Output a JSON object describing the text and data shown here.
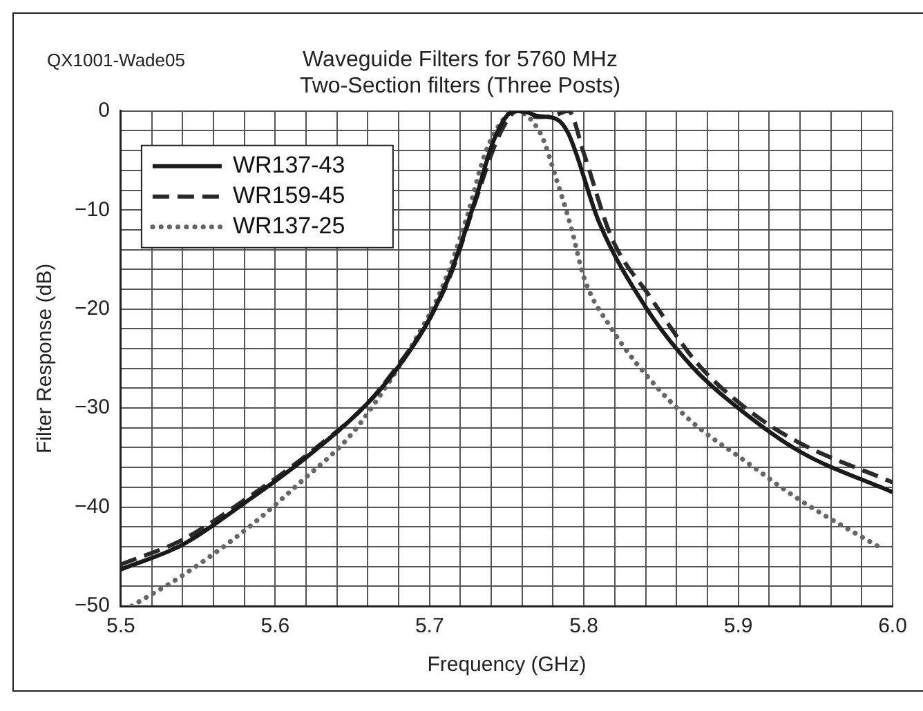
{
  "chart_data": {
    "type": "line",
    "title": [
      "Waveguide Filters for 5760 MHz",
      "Two-Section filters (Three Posts)"
    ],
    "xlabel": "Frequency (GHz)",
    "ylabel": "Filter Response (dB)",
    "annotations": [
      "QX1001-Wade05"
    ],
    "xlim": [
      5.5,
      6.0
    ],
    "xticks": [
      {
        "value": 5.5,
        "label": "5.5"
      },
      {
        "value": 5.52,
        "label": null
      },
      {
        "value": 5.54,
        "label": null
      },
      {
        "value": 5.56,
        "label": null
      },
      {
        "value": 5.58,
        "label": null
      },
      {
        "value": 5.6,
        "label": "5.6"
      },
      {
        "value": 5.62,
        "label": null
      },
      {
        "value": 5.64,
        "label": null
      },
      {
        "value": 5.66,
        "label": null
      },
      {
        "value": 5.68,
        "label": null
      },
      {
        "value": 5.7,
        "label": "5.7"
      },
      {
        "value": 5.72,
        "label": null
      },
      {
        "value": 5.74,
        "label": null
      },
      {
        "value": 5.76,
        "label": null
      },
      {
        "value": 5.78,
        "label": null
      },
      {
        "value": 5.8,
        "label": "5.8"
      },
      {
        "value": 5.82,
        "label": null
      },
      {
        "value": 5.84,
        "label": null
      },
      {
        "value": 5.86,
        "label": null
      },
      {
        "value": 5.88,
        "label": null
      },
      {
        "value": 5.9,
        "label": "5.9"
      },
      {
        "value": 5.92,
        "label": null
      },
      {
        "value": 5.94,
        "label": null
      },
      {
        "value": 5.96,
        "label": null
      },
      {
        "value": 5.98,
        "label": null
      },
      {
        "value": 6.0,
        "label": "6.0"
      }
    ],
    "ylim": [
      -50,
      0
    ],
    "yticks": [
      {
        "value": -50,
        "label": "−50"
      },
      {
        "value": -48,
        "label": null
      },
      {
        "value": -46,
        "label": null
      },
      {
        "value": -44,
        "label": null
      },
      {
        "value": -42,
        "label": null
      },
      {
        "value": -40,
        "label": "−40"
      },
      {
        "value": -38,
        "label": null
      },
      {
        "value": -36,
        "label": null
      },
      {
        "value": -34,
        "label": null
      },
      {
        "value": -32,
        "label": null
      },
      {
        "value": -30,
        "label": "−30"
      },
      {
        "value": -28,
        "label": null
      },
      {
        "value": -26,
        "label": null
      },
      {
        "value": -24,
        "label": null
      },
      {
        "value": -22,
        "label": null
      },
      {
        "value": -20,
        "label": "−20"
      },
      {
        "value": -18,
        "label": null
      },
      {
        "value": -16,
        "label": null
      },
      {
        "value": -14,
        "label": null
      },
      {
        "value": -12,
        "label": null
      },
      {
        "value": -10,
        "label": "−10"
      },
      {
        "value": -8,
        "label": null
      },
      {
        "value": -6,
        "label": null
      },
      {
        "value": -4,
        "label": null
      },
      {
        "value": -2,
        "label": null
      },
      {
        "value": 0,
        "label": "0"
      }
    ],
    "grid": true,
    "legend": "top left",
    "marker": "none",
    "series": [
      {
        "name": "WR137-43",
        "color": "#1a1a1a",
        "line_style": "solid",
        "x": [
          5.5,
          5.54,
          5.58,
          5.62,
          5.66,
          5.68,
          5.7,
          5.715,
          5.73,
          5.742,
          5.755,
          5.76,
          5.77,
          5.782,
          5.79,
          5.81,
          5.84,
          5.87,
          5.9,
          5.94,
          6.0
        ],
        "values": [
          -46.3,
          -43.8,
          -39.6,
          -35,
          -29.5,
          -25.8,
          -21,
          -15.8,
          -8.8,
          -2.8,
          0,
          0,
          -0.5,
          -0.8,
          -2.3,
          -11.3,
          -19.8,
          -25.8,
          -30,
          -34.4,
          -38.5
        ]
      },
      {
        "name": "WR159-45",
        "color": "#2a2a2a",
        "line_style": "dashed",
        "x": [
          5.5,
          5.54,
          5.58,
          5.62,
          5.66,
          5.68,
          5.7,
          5.715,
          5.73,
          5.745,
          5.757,
          5.77,
          5.78,
          5.79,
          5.8,
          5.818,
          5.843,
          5.873,
          5.904,
          5.937,
          6.0
        ],
        "values": [
          -45.8,
          -43.3,
          -39.3,
          -34.8,
          -29.5,
          -25.6,
          -21,
          -16,
          -9,
          -2.5,
          0,
          -0.6,
          -0.5,
          0,
          -4.3,
          -12.8,
          -18.8,
          -25.4,
          -29.9,
          -33.3,
          -37.5
        ]
      },
      {
        "name": "WR137-25",
        "color": "#666666",
        "line_style": "dotted",
        "x": [
          5.507,
          5.541,
          5.584,
          5.617,
          5.648,
          5.672,
          5.69,
          5.708,
          5.724,
          5.736,
          5.748,
          5.755,
          5.772,
          5.782,
          5.792,
          5.8,
          5.818,
          5.84,
          5.87,
          5.904,
          5.94,
          5.992
        ],
        "values": [
          -50,
          -46.8,
          -41.9,
          -37.4,
          -32.9,
          -27.8,
          -23.3,
          -17.9,
          -10.8,
          -4.3,
          -0.8,
          0,
          -2.3,
          -6.8,
          -11.9,
          -16.8,
          -22,
          -26.6,
          -31.4,
          -35.3,
          -39.3,
          -44.1
        ]
      }
    ]
  }
}
